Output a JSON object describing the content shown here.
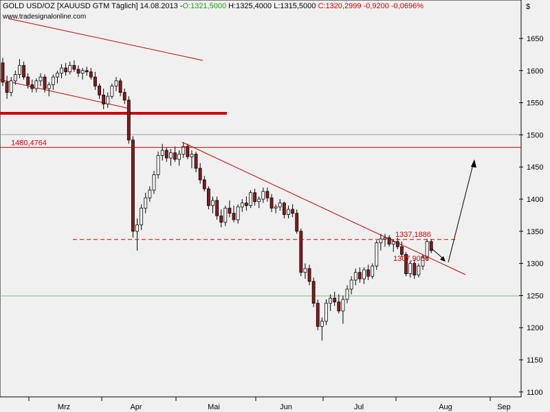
{
  "chart_data": {
    "type": "candlestick",
    "header": {
      "symbol": "GOLD USD/OZ [XAUUSD GTM  Täglich]",
      "date": "14.08.2013",
      "open": "O:1321,5000",
      "high": "H:1325,4000",
      "low": "L:1315,5000",
      "close": "C:1320,2999",
      "change": "-0,9200",
      "change_pct": "-0,0696%"
    },
    "watermark": "www.tradesignalonline.com",
    "currency": "$",
    "y_range": [
      1095,
      1690
    ],
    "y_ticks": [
      "1650",
      "1600",
      "1550",
      "1500",
      "1450",
      "1400",
      "1350",
      "1300",
      "1250",
      "1200",
      "1150",
      "1100"
    ],
    "x_ticks": [
      "Mrz",
      "Apr",
      "Mai",
      "Jun",
      "Jul",
      "Aug",
      "Sep"
    ],
    "levels": [
      {
        "label": "1480,4764",
        "value": 1480.48
      },
      {
        "label": "1337,1886",
        "value": 1337.19
      },
      {
        "label": "1307,9086",
        "value": 1307.91
      }
    ],
    "colors": {
      "up": "#ffffff",
      "down": "#8b1a1a",
      "level": "#cc0000",
      "grid_upper": "#a0a0a0",
      "grid_lower": "#6fbf6f"
    },
    "candles": [
      [
        1612,
        1620,
        1576,
        1582
      ],
      [
        1582,
        1592,
        1556,
        1566
      ],
      [
        1566,
        1590,
        1560,
        1584
      ],
      [
        1584,
        1600,
        1578,
        1594
      ],
      [
        1594,
        1618,
        1588,
        1608
      ],
      [
        1608,
        1614,
        1586,
        1590
      ],
      [
        1590,
        1596,
        1572,
        1578
      ],
      [
        1578,
        1586,
        1566,
        1572
      ],
      [
        1572,
        1588,
        1566,
        1584
      ],
      [
        1584,
        1596,
        1576,
        1590
      ],
      [
        1590,
        1594,
        1566,
        1572
      ],
      [
        1572,
        1582,
        1560,
        1578
      ],
      [
        1578,
        1594,
        1570,
        1590
      ],
      [
        1590,
        1600,
        1580,
        1596
      ],
      [
        1596,
        1610,
        1588,
        1604
      ],
      [
        1604,
        1612,
        1592,
        1598
      ],
      [
        1598,
        1614,
        1594,
        1608
      ],
      [
        1608,
        1616,
        1598,
        1602
      ],
      [
        1602,
        1608,
        1590,
        1596
      ],
      [
        1596,
        1604,
        1586,
        1600
      ],
      [
        1600,
        1606,
        1592,
        1598
      ],
      [
        1598,
        1604,
        1586,
        1590
      ],
      [
        1590,
        1598,
        1570,
        1576
      ],
      [
        1576,
        1580,
        1556,
        1562
      ],
      [
        1562,
        1572,
        1540,
        1548
      ],
      [
        1548,
        1566,
        1542,
        1560
      ],
      [
        1560,
        1580,
        1556,
        1576
      ],
      [
        1576,
        1590,
        1568,
        1584
      ],
      [
        1584,
        1588,
        1560,
        1566
      ],
      [
        1566,
        1572,
        1548,
        1554
      ],
      [
        1554,
        1560,
        1486,
        1492
      ],
      [
        1492,
        1498,
        1340,
        1350
      ],
      [
        1350,
        1370,
        1320,
        1360
      ],
      [
        1360,
        1392,
        1352,
        1386
      ],
      [
        1386,
        1410,
        1378,
        1402
      ],
      [
        1402,
        1420,
        1396,
        1414
      ],
      [
        1414,
        1444,
        1408,
        1438
      ],
      [
        1438,
        1474,
        1432,
        1468
      ],
      [
        1468,
        1486,
        1460,
        1476
      ],
      [
        1476,
        1480,
        1458,
        1464
      ],
      [
        1464,
        1478,
        1452,
        1472
      ],
      [
        1472,
        1482,
        1458,
        1462
      ],
      [
        1462,
        1476,
        1452,
        1470
      ],
      [
        1470,
        1488,
        1464,
        1482
      ],
      [
        1482,
        1486,
        1462,
        1466
      ],
      [
        1466,
        1476,
        1448,
        1470
      ],
      [
        1470,
        1474,
        1442,
        1448
      ],
      [
        1448,
        1456,
        1424,
        1430
      ],
      [
        1430,
        1436,
        1412,
        1416
      ],
      [
        1416,
        1420,
        1384,
        1390
      ],
      [
        1390,
        1404,
        1378,
        1398
      ],
      [
        1398,
        1404,
        1368,
        1374
      ],
      [
        1374,
        1384,
        1356,
        1364
      ],
      [
        1364,
        1390,
        1358,
        1386
      ],
      [
        1386,
        1398,
        1372,
        1378
      ],
      [
        1378,
        1390,
        1364,
        1368
      ],
      [
        1368,
        1392,
        1362,
        1388
      ],
      [
        1388,
        1400,
        1380,
        1394
      ],
      [
        1394,
        1404,
        1382,
        1390
      ],
      [
        1390,
        1414,
        1386,
        1410
      ],
      [
        1410,
        1416,
        1390,
        1396
      ],
      [
        1396,
        1404,
        1386,
        1400
      ],
      [
        1400,
        1418,
        1394,
        1412
      ],
      [
        1412,
        1418,
        1396,
        1402
      ],
      [
        1402,
        1408,
        1380,
        1386
      ],
      [
        1386,
        1392,
        1378,
        1388
      ],
      [
        1388,
        1400,
        1382,
        1394
      ],
      [
        1394,
        1396,
        1370,
        1376
      ],
      [
        1376,
        1390,
        1370,
        1384
      ],
      [
        1384,
        1392,
        1372,
        1378
      ],
      [
        1378,
        1384,
        1346,
        1350
      ],
      [
        1350,
        1354,
        1280,
        1286
      ],
      [
        1286,
        1300,
        1276,
        1292
      ],
      [
        1292,
        1298,
        1266,
        1272
      ],
      [
        1272,
        1278,
        1232,
        1238
      ],
      [
        1238,
        1244,
        1196,
        1202
      ],
      [
        1202,
        1216,
        1180,
        1210
      ],
      [
        1210,
        1244,
        1204,
        1238
      ],
      [
        1238,
        1252,
        1226,
        1246
      ],
      [
        1246,
        1256,
        1234,
        1240
      ],
      [
        1240,
        1252,
        1222,
        1226
      ],
      [
        1226,
        1250,
        1206,
        1244
      ],
      [
        1244,
        1266,
        1238,
        1260
      ],
      [
        1260,
        1280,
        1252,
        1274
      ],
      [
        1274,
        1292,
        1266,
        1286
      ],
      [
        1286,
        1294,
        1270,
        1276
      ],
      [
        1276,
        1294,
        1268,
        1290
      ],
      [
        1290,
        1298,
        1274,
        1280
      ],
      [
        1280,
        1300,
        1276,
        1296
      ],
      [
        1296,
        1336,
        1290,
        1332
      ],
      [
        1332,
        1346,
        1320,
        1338
      ],
      [
        1338,
        1346,
        1326,
        1340
      ],
      [
        1340,
        1344,
        1326,
        1330
      ],
      [
        1330,
        1338,
        1318,
        1334
      ],
      [
        1334,
        1340,
        1322,
        1326
      ],
      [
        1326,
        1334,
        1310,
        1314
      ],
      [
        1314,
        1318,
        1280,
        1284
      ],
      [
        1284,
        1304,
        1278,
        1300
      ],
      [
        1300,
        1306,
        1276,
        1282
      ],
      [
        1282,
        1300,
        1278,
        1296
      ],
      [
        1296,
        1314,
        1290,
        1310
      ],
      [
        1310,
        1338,
        1304,
        1334
      ],
      [
        1334,
        1338,
        1316,
        1320
      ]
    ]
  }
}
